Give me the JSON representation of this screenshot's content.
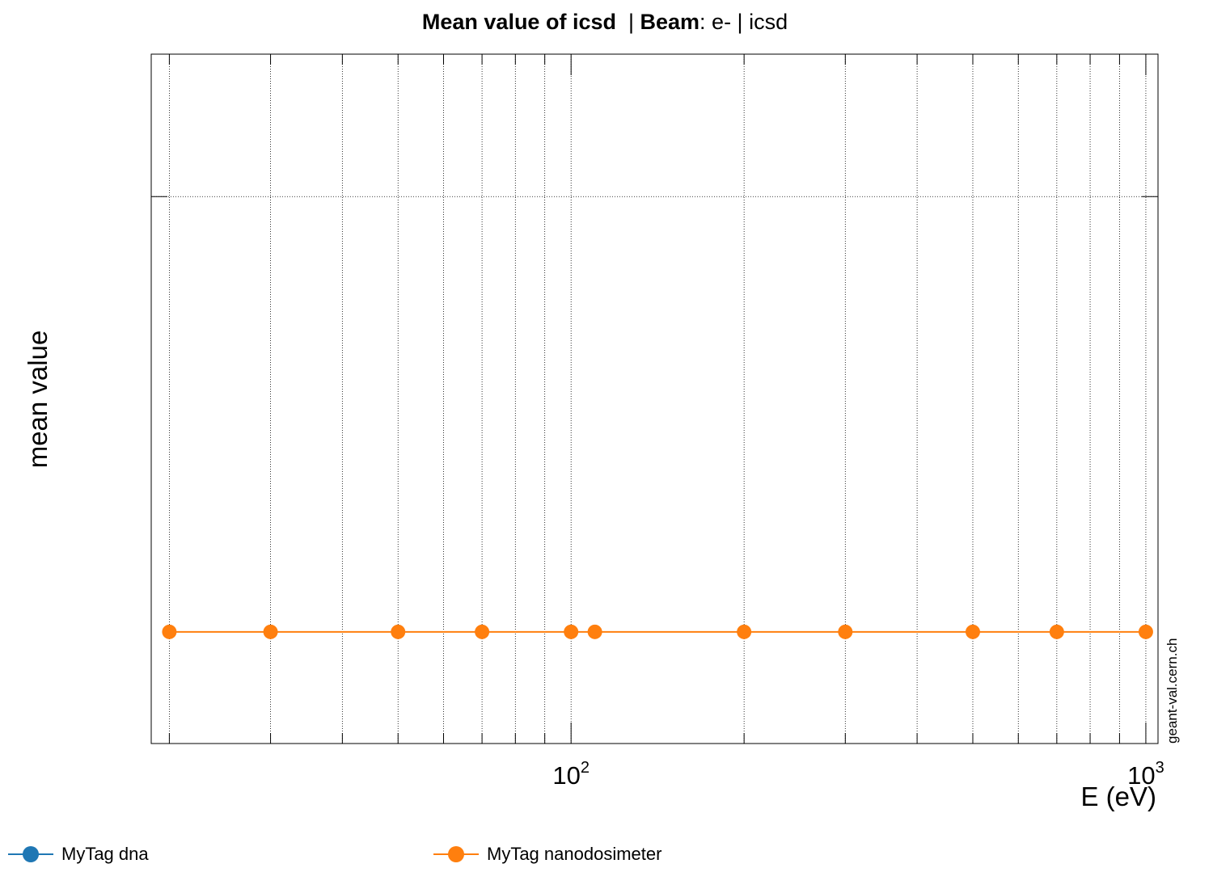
{
  "chart_data": {
    "type": "line",
    "title_parts": [
      {
        "text": "Mean value of icsd",
        "bold": true
      },
      {
        "text": "  | ",
        "bold": false
      },
      {
        "text": "Beam",
        "bold": true
      },
      {
        "text": ": e- | icsd",
        "bold": false
      }
    ],
    "xlabel": "E (eV)",
    "ylabel": "mean value",
    "x_scale": "log",
    "xlim": [
      18.6,
      1050
    ],
    "x_tick_labels": [
      {
        "base": "10",
        "exp": "2",
        "value": 100
      },
      {
        "base": "10",
        "exp": "3",
        "value": 1000
      }
    ],
    "grid": true,
    "watermark": "geant-val.cern.ch",
    "series": [
      {
        "name": "MyTag dna",
        "color": "#1f77b4",
        "x": [],
        "y": []
      },
      {
        "name": "MyTag nanodosimeter",
        "color": "#ff7f0e",
        "x": [
          20,
          30,
          50,
          70,
          100,
          110,
          200,
          300,
          500,
          700,
          1000
        ],
        "y": [
          0.2,
          0.2,
          0.2,
          0.2,
          0.2,
          0.2,
          0.2,
          0.2,
          0.2,
          0.2,
          0.2
        ]
      }
    ],
    "ylim": [
      0,
      1
    ],
    "legend_position": "bottom"
  }
}
